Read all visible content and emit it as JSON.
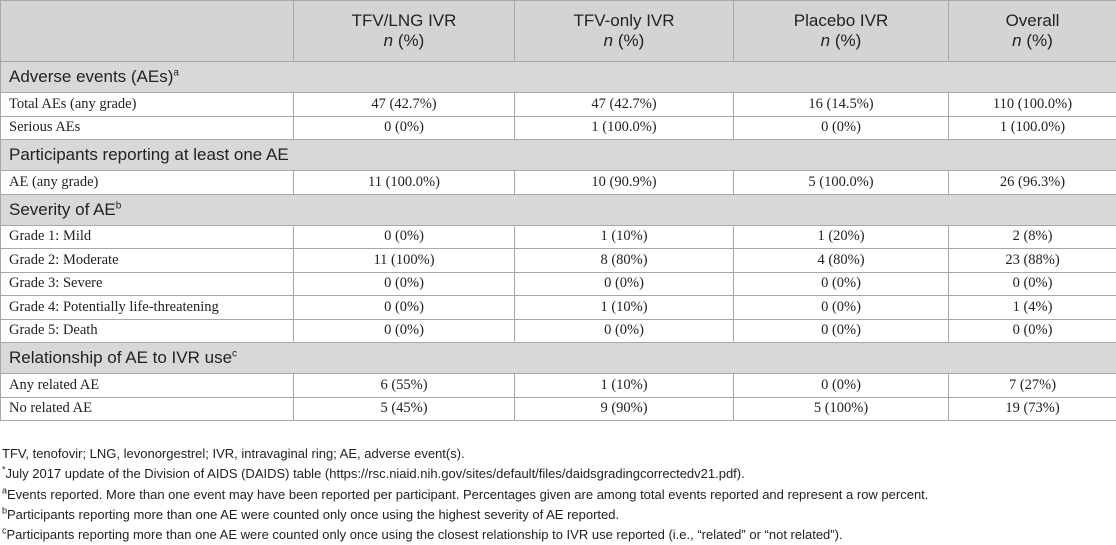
{
  "table": {
    "columns": [
      {
        "name": "",
        "unit": ""
      },
      {
        "name": "TFV/LNG IVR",
        "unit_n": "n",
        "unit_pct": " (%)"
      },
      {
        "name": "TFV-only IVR",
        "unit_n": "n",
        "unit_pct": " (%)"
      },
      {
        "name": "Placebo IVR",
        "unit_n": "n",
        "unit_pct": " (%)"
      },
      {
        "name": "Overall",
        "unit_n": "n",
        "unit_pct": " (%)"
      }
    ],
    "sections": [
      {
        "title": "Adverse events (AEs)",
        "sup": "a",
        "rows": [
          {
            "label": "Total AEs (any grade)",
            "values": [
              "47 (42.7%)",
              "47 (42.7%)",
              "16 (14.5%)",
              "110 (100.0%)"
            ]
          },
          {
            "label": "Serious AEs",
            "values": [
              "0 (0%)",
              "1 (100.0%)",
              "0 (0%)",
              "1 (100.0%)"
            ]
          }
        ]
      },
      {
        "title": "Participants reporting at least one AE",
        "sup": "",
        "rows": [
          {
            "label": "AE (any grade)",
            "values": [
              "11 (100.0%)",
              "10 (90.9%)",
              "5 (100.0%)",
              "26 (96.3%)"
            ]
          }
        ]
      },
      {
        "title": "Severity of AE",
        "sup": "b",
        "rows": [
          {
            "label": "Grade 1: Mild",
            "values": [
              "0 (0%)",
              "1 (10%)",
              "1 (20%)",
              "2 (8%)"
            ]
          },
          {
            "label": "Grade 2: Moderate",
            "values": [
              "11 (100%)",
              "8 (80%)",
              "4 (80%)",
              "23 (88%)"
            ]
          },
          {
            "label": "Grade 3: Severe",
            "values": [
              "0 (0%)",
              "0 (0%)",
              "0 (0%)",
              "0 (0%)"
            ]
          },
          {
            "label": "Grade 4: Potentially life-threatening",
            "values": [
              "0 (0%)",
              "1 (10%)",
              "0 (0%)",
              "1 (4%)"
            ]
          },
          {
            "label": "Grade 5: Death",
            "values": [
              "0 (0%)",
              "0 (0%)",
              "0 (0%)",
              "0 (0%)"
            ]
          }
        ]
      },
      {
        "title": "Relationship of AE to IVR use",
        "sup": "c",
        "rows": [
          {
            "label": "Any related AE",
            "values": [
              "6 (55%)",
              "1 (10%)",
              "0 (0%)",
              "7 (27%)"
            ]
          },
          {
            "label": "No related AE",
            "values": [
              "5 (45%)",
              "9 (90%)",
              "5 (100%)",
              "19 (73%)"
            ]
          }
        ]
      }
    ]
  },
  "footnotes": [
    {
      "mark": "",
      "text": "TFV, tenofovir; LNG, levonorgestrel; IVR, intravaginal ring; AE, adverse event(s)."
    },
    {
      "mark": "*",
      "text": "July 2017 update of the Division of AIDS (DAIDS) table (https://rsc.niaid.nih.gov/sites/default/files/daidsgradingcorrectedv21.pdf)."
    },
    {
      "mark": "a",
      "text": "Events reported. More than one event may have been reported per participant. Percentages given are among total events reported and represent a row percent."
    },
    {
      "mark": "b",
      "text": "Participants reporting more than one AE were counted only once using the highest severity of AE reported."
    },
    {
      "mark": "c",
      "text": "Participants reporting more than one AE were counted only once using the closest relationship to IVR use reported (i.e., “related” or “not related”)."
    }
  ]
}
